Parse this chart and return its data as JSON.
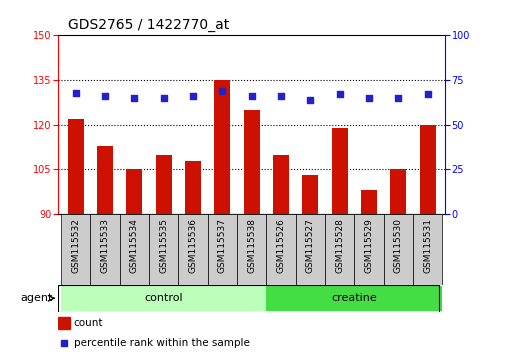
{
  "title": "GDS2765 / 1422770_at",
  "samples": [
    "GSM115532",
    "GSM115533",
    "GSM115534",
    "GSM115535",
    "GSM115536",
    "GSM115537",
    "GSM115538",
    "GSM115526",
    "GSM115527",
    "GSM115528",
    "GSM115529",
    "GSM115530",
    "GSM115531"
  ],
  "counts": [
    122,
    113,
    105,
    110,
    108,
    135,
    125,
    110,
    103,
    119,
    98,
    105,
    120
  ],
  "percentiles": [
    68,
    66,
    65,
    65,
    66,
    69,
    66,
    66,
    64,
    67,
    65,
    65,
    67
  ],
  "ylim_left": [
    90,
    150
  ],
  "ylim_right": [
    0,
    100
  ],
  "yticks_left": [
    90,
    105,
    120,
    135,
    150
  ],
  "yticks_right": [
    0,
    25,
    50,
    75,
    100
  ],
  "groups": [
    {
      "label": "control",
      "indices": [
        0,
        1,
        2,
        3,
        4,
        5,
        6
      ],
      "color": "#bbffbb"
    },
    {
      "label": "creatine",
      "indices": [
        7,
        8,
        9,
        10,
        11,
        12
      ],
      "color": "#44dd44"
    }
  ],
  "bar_color": "#cc1100",
  "dot_color": "#2222cc",
  "bar_width": 0.55,
  "agent_label": "agent",
  "legend_count_label": "count",
  "legend_pct_label": "percentile rank within the sample",
  "title_fontsize": 10,
  "tick_fontsize": 7,
  "label_fontsize": 8,
  "xtick_bg": "#cccccc"
}
